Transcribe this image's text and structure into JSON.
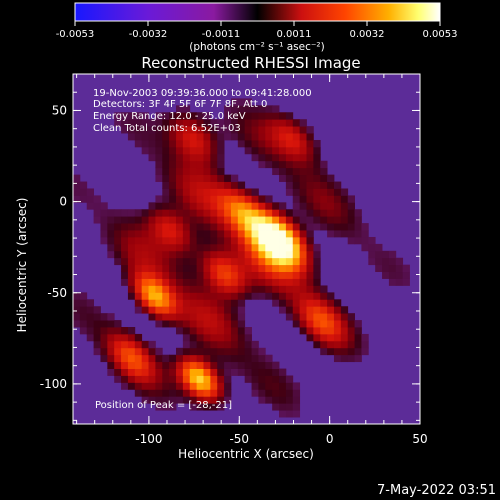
{
  "colorbar": {
    "tick_labels": [
      "-0.0053",
      "-0.0032",
      "-0.0011",
      "0.0011",
      "0.0032",
      "0.0053"
    ],
    "units_label": "(photons cm⁻² s⁻¹ asec⁻²)",
    "colors": [
      "#1818ff",
      "#6a1ad8",
      "#8a1aa0",
      "#000000",
      "#cc1010",
      "#ff4400",
      "#ffb000",
      "#ffff70",
      "#ffffff"
    ]
  },
  "title": "Reconstructed RHESSI Image",
  "annotations": {
    "time_range": "19-Nov-2003 09:39:36.000 to 09:41:28.000",
    "detectors": "Detectors: 3F 4F 5F 6F 7F 8F, Att 0",
    "energy_range": "Energy Range: 12.0 - 25.0 keV",
    "method_counts": "Clean    Total counts: 6.52E+03",
    "peak_position": "Position of Peak = [-28,-21]"
  },
  "axes": {
    "xlabel": "Heliocentric X (arcsec)",
    "ylabel": "Heliocentric Y (arcsec)",
    "xlim": [
      -142,
      50
    ],
    "ylim": [
      -122,
      70
    ],
    "x_ticks": [
      -100,
      -50,
      0,
      50
    ],
    "y_ticks": [
      -100,
      -50,
      0,
      50
    ],
    "x_tick_labels": [
      "-100",
      "-50",
      "0",
      "50"
    ],
    "y_tick_labels": [
      "-100",
      "-50",
      "0",
      "50"
    ]
  },
  "image": {
    "peak": [
      -28,
      -21
    ],
    "background_color": "#5c2c98"
  },
  "timestamp": "7-May-2022 03:51"
}
